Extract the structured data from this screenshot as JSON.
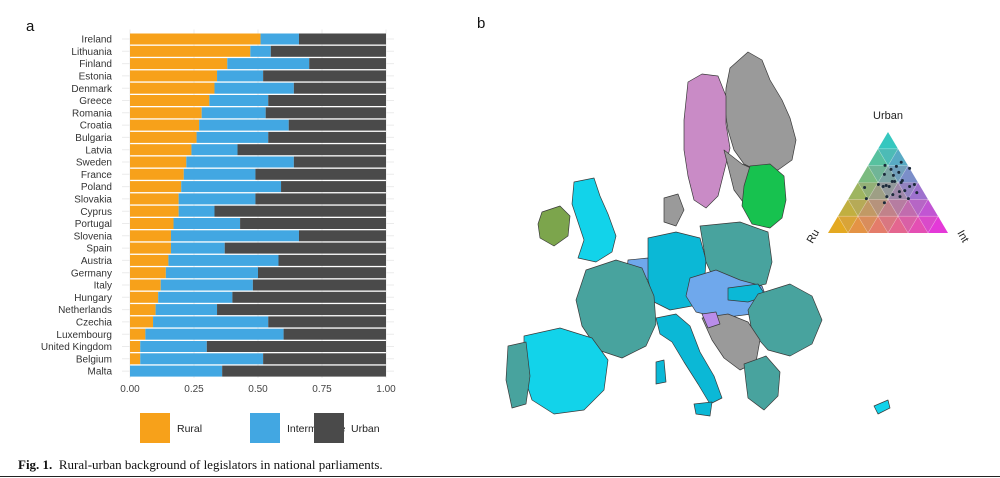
{
  "panel_a_label": "a",
  "panel_b_label": "b",
  "caption": {
    "label": "Fig. 1.",
    "text": "Rural-urban background of legislators in national parliaments."
  },
  "colors": {
    "rural": "#F7A11A",
    "intermediate": "#42A7E2",
    "urban": "#4A4A4A"
  },
  "chart_data": [
    {
      "type": "bar",
      "orientation": "horizontal",
      "stacked": true,
      "categories": [
        "Ireland",
        "Lithuania",
        "Finland",
        "Estonia",
        "Denmark",
        "Greece",
        "Romania",
        "Croatia",
        "Bulgaria",
        "Latvia",
        "Sweden",
        "France",
        "Poland",
        "Slovakia",
        "Cyprus",
        "Portugal",
        "Slovenia",
        "Spain",
        "Austria",
        "Germany",
        "Italy",
        "Hungary",
        "Netherlands",
        "Czechia",
        "Luxembourg",
        "United Kingdom",
        "Belgium",
        "Malta"
      ],
      "series": [
        {
          "name": "Rural",
          "values": [
            0.51,
            0.47,
            0.38,
            0.34,
            0.33,
            0.31,
            0.28,
            0.27,
            0.26,
            0.24,
            0.22,
            0.21,
            0.2,
            0.19,
            0.19,
            0.17,
            0.16,
            0.16,
            0.15,
            0.14,
            0.12,
            0.11,
            0.1,
            0.09,
            0.06,
            0.04,
            0.04,
            0.0
          ]
        },
        {
          "name": "Intermediate",
          "values": [
            0.15,
            0.08,
            0.32,
            0.18,
            0.31,
            0.23,
            0.25,
            0.35,
            0.28,
            0.18,
            0.42,
            0.28,
            0.39,
            0.3,
            0.14,
            0.26,
            0.5,
            0.21,
            0.43,
            0.36,
            0.36,
            0.29,
            0.24,
            0.45,
            0.54,
            0.26,
            0.48,
            0.36
          ]
        },
        {
          "name": "Urban",
          "values": [
            0.34,
            0.45,
            0.3,
            0.48,
            0.36,
            0.46,
            0.47,
            0.38,
            0.46,
            0.58,
            0.36,
            0.51,
            0.41,
            0.51,
            0.67,
            0.57,
            0.34,
            0.63,
            0.42,
            0.5,
            0.52,
            0.6,
            0.66,
            0.46,
            0.4,
            0.7,
            0.48,
            0.64
          ]
        }
      ],
      "xlim": [
        0,
        1
      ],
      "xticks": [
        "0.00",
        "0.25",
        "0.50",
        "0.75",
        "1.00"
      ],
      "legend": [
        "Rural",
        "Intermediate",
        "Urban"
      ],
      "legend_position": "bottom",
      "grid": true
    },
    {
      "type": "ternary",
      "axes": {
        "top": "Urban",
        "left": "Ru",
        "right": "Int"
      },
      "points": [
        {
          "urban": 0.34,
          "intermediate": 0.15,
          "rural": 0.51
        },
        {
          "urban": 0.45,
          "intermediate": 0.08,
          "rural": 0.47
        },
        {
          "urban": 0.3,
          "intermediate": 0.32,
          "rural": 0.38
        },
        {
          "urban": 0.48,
          "intermediate": 0.18,
          "rural": 0.34
        },
        {
          "urban": 0.36,
          "intermediate": 0.31,
          "rural": 0.33
        },
        {
          "urban": 0.46,
          "intermediate": 0.23,
          "rural": 0.31
        },
        {
          "urban": 0.47,
          "intermediate": 0.25,
          "rural": 0.28
        },
        {
          "urban": 0.38,
          "intermediate": 0.35,
          "rural": 0.27
        },
        {
          "urban": 0.46,
          "intermediate": 0.28,
          "rural": 0.26
        },
        {
          "urban": 0.58,
          "intermediate": 0.18,
          "rural": 0.24
        },
        {
          "urban": 0.36,
          "intermediate": 0.42,
          "rural": 0.22
        },
        {
          "urban": 0.51,
          "intermediate": 0.28,
          "rural": 0.21
        },
        {
          "urban": 0.41,
          "intermediate": 0.39,
          "rural": 0.2
        },
        {
          "urban": 0.51,
          "intermediate": 0.3,
          "rural": 0.19
        },
        {
          "urban": 0.67,
          "intermediate": 0.14,
          "rural": 0.19
        },
        {
          "urban": 0.57,
          "intermediate": 0.26,
          "rural": 0.17
        },
        {
          "urban": 0.34,
          "intermediate": 0.5,
          "rural": 0.16
        },
        {
          "urban": 0.63,
          "intermediate": 0.21,
          "rural": 0.16
        },
        {
          "urban": 0.42,
          "intermediate": 0.43,
          "rural": 0.15
        },
        {
          "urban": 0.5,
          "intermediate": 0.36,
          "rural": 0.14
        },
        {
          "urban": 0.52,
          "intermediate": 0.36,
          "rural": 0.12
        },
        {
          "urban": 0.6,
          "intermediate": 0.29,
          "rural": 0.11
        },
        {
          "urban": 0.66,
          "intermediate": 0.24,
          "rural": 0.1
        },
        {
          "urban": 0.46,
          "intermediate": 0.45,
          "rural": 0.09
        },
        {
          "urban": 0.4,
          "intermediate": 0.54,
          "rural": 0.06
        },
        {
          "urban": 0.7,
          "intermediate": 0.26,
          "rural": 0.04
        },
        {
          "urban": 0.48,
          "intermediate": 0.48,
          "rural": 0.04
        },
        {
          "urban": 0.64,
          "intermediate": 0.36,
          "rural": 0.0
        }
      ]
    }
  ],
  "map": {
    "palette": {
      "sea": "#ffffff",
      "border": "#3a3a3a",
      "teal": "#48A39E",
      "cyan": "#12D3EA",
      "deepcyan": "#0BB8D6",
      "lightblue": "#6FA8EC",
      "purple": "#C98BC6",
      "grey": "#9A9A9A",
      "green": "#17C24F",
      "olive": "#7CA54C",
      "violet": "#B98DEA"
    }
  }
}
